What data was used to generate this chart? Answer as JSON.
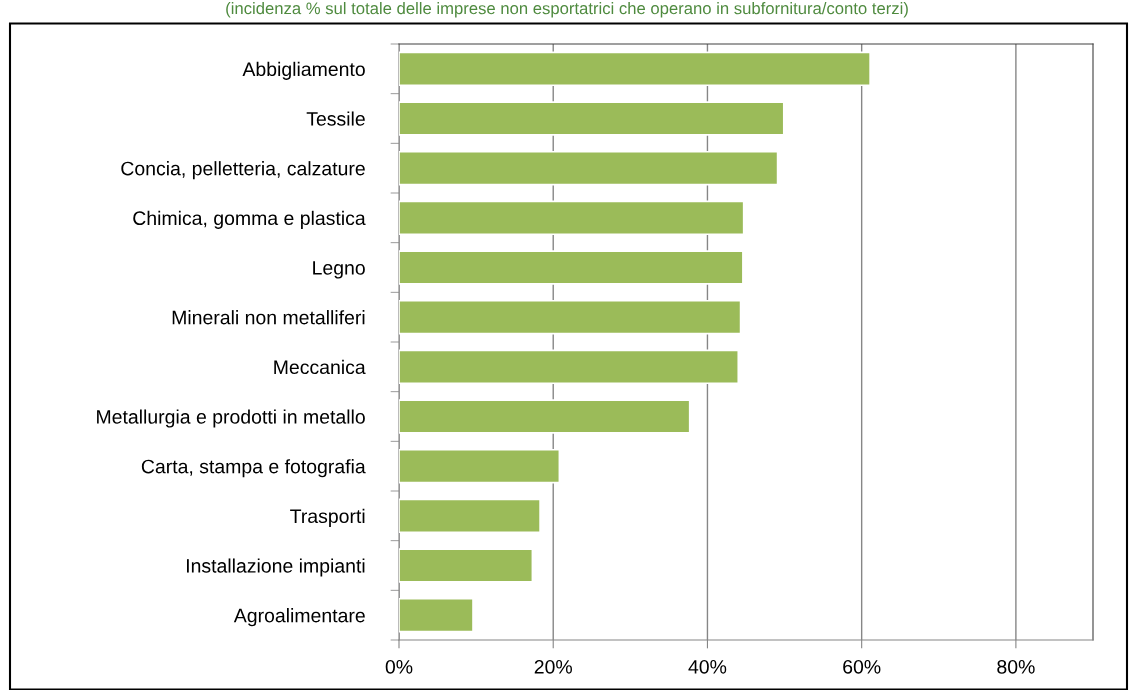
{
  "chart_data": {
    "type": "bar",
    "orientation": "horizontal",
    "subtitle": "(incidenza % sul totale delle imprese non esportatrici che operano in subfornitura/conto terzi)",
    "categories": [
      "Abbigliamento",
      "Tessile",
      "Concia, pelletteria, calzature",
      "Chimica, gomma e plastica",
      "Legno",
      "Minerali non metalliferi",
      "Meccanica",
      "Metallurgia e prodotti in metallo",
      "Carta, stampa e fotografia",
      "Trasporti",
      "Installazione impianti",
      "Agroalimentare"
    ],
    "values": [
      61.1,
      49.9,
      49.1,
      44.7,
      44.6,
      44.3,
      44.0,
      37.7,
      20.8,
      18.3,
      17.3,
      9.6
    ],
    "color": "#9bbb59",
    "xlim": [
      0,
      90
    ],
    "xticks": [
      {
        "value": 0,
        "label": "0%"
      },
      {
        "value": 20,
        "label": "20%"
      },
      {
        "value": 40,
        "label": "40%"
      },
      {
        "value": 60,
        "label": "60%"
      },
      {
        "value": 80,
        "label": "80%"
      }
    ],
    "grid": "x",
    "legend": false
  }
}
